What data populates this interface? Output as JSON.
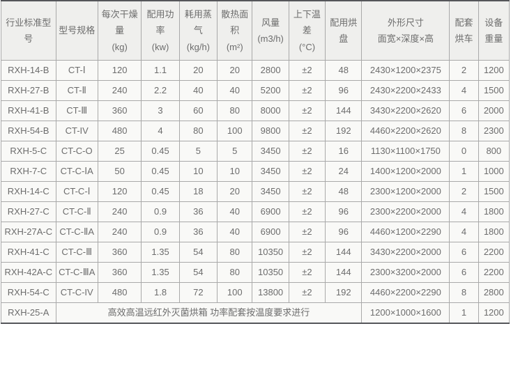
{
  "table": {
    "columns": [
      {
        "label": "行业标准型号"
      },
      {
        "label": "型号规格"
      },
      {
        "label": "每次干燥量",
        "unit": "(kg)"
      },
      {
        "label": "配用功率",
        "unit": "(kw)"
      },
      {
        "label": "耗用蒸气",
        "unit": "(kg/h)"
      },
      {
        "label": "散热面积",
        "unit": "(m²)"
      },
      {
        "label": "风量",
        "unit": "(m3/h)"
      },
      {
        "label": "上下温差",
        "unit": "(°C)"
      },
      {
        "label": "配用烘盘"
      },
      {
        "label": "外形尺寸",
        "unit": "面宽×深度×高"
      },
      {
        "label": "配套烘车"
      },
      {
        "label": "设备重量"
      }
    ],
    "rows": [
      [
        "RXH-14-B",
        "CT-Ⅰ",
        "120",
        "1.1",
        "20",
        "20",
        "2800",
        "±2",
        "48",
        "2430×1200×2375",
        "2",
        "1200"
      ],
      [
        "RXH-27-B",
        "CT-Ⅱ",
        "240",
        "2.2",
        "40",
        "40",
        "5200",
        "±2",
        "96",
        "2430×2200×2433",
        "4",
        "1500"
      ],
      [
        "RXH-41-B",
        "CT-Ⅲ",
        "360",
        "3",
        "60",
        "80",
        "8000",
        "±2",
        "144",
        "3430×2200×2620",
        "6",
        "2000"
      ],
      [
        "RXH-54-B",
        "CT-IV",
        "480",
        "4",
        "80",
        "100",
        "9800",
        "±2",
        "192",
        "4460×2200×2620",
        "8",
        "2300"
      ],
      [
        "RXH-5-C",
        "CT-C-O",
        "25",
        "0.45",
        "5",
        "5",
        "3450",
        "±2",
        "16",
        "1130×1100×1750",
        "0",
        "800"
      ],
      [
        "RXH-7-C",
        "CT-C-ⅠA",
        "50",
        "0.45",
        "10",
        "10",
        "3450",
        "±2",
        "24",
        "1400×1200×2000",
        "1",
        "1000"
      ],
      [
        "RXH-14-C",
        "CT-C-Ⅰ",
        "120",
        "0.45",
        "18",
        "20",
        "3450",
        "±2",
        "48",
        "2300×1200×2000",
        "2",
        "1500"
      ],
      [
        "RXH-27-C",
        "CT-C-Ⅱ",
        "240",
        "0.9",
        "36",
        "40",
        "6900",
        "±2",
        "96",
        "2300×2200×2000",
        "4",
        "1800"
      ],
      [
        "RXH-27A-C",
        "CT-C-ⅡA",
        "240",
        "0.9",
        "36",
        "40",
        "6900",
        "±2",
        "96",
        "4460×1200×2290",
        "4",
        "1800"
      ],
      [
        "RXH-41-C",
        "CT-C-Ⅲ",
        "360",
        "1.35",
        "54",
        "80",
        "10350",
        "±2",
        "144",
        "3430×2200×2000",
        "6",
        "2200"
      ],
      [
        "RXH-42A-C",
        "CT-C-ⅢA",
        "360",
        "1.35",
        "54",
        "80",
        "10350",
        "±2",
        "144",
        "2300×3200×2000",
        "6",
        "2200"
      ],
      [
        "RXH-54-C",
        "CT-C-IV",
        "480",
        "1.8",
        "72",
        "100",
        "13800",
        "±2",
        "192",
        "4460×2200×2290",
        "8",
        "2800"
      ]
    ],
    "footer_row": {
      "model": "RXH-25-A",
      "note": "高效高温远红外灭菌烘箱 功率配套按温度要求进行",
      "dimensions": "1200×1000×1600",
      "trolleys": "1",
      "weight": "1200"
    },
    "colors": {
      "header_bg": "#efefed",
      "cell_bg": "#f9f9f7",
      "inner_border": "#a9a9a9",
      "outer_border": "#55565a",
      "text": "#6c6c6c"
    }
  }
}
